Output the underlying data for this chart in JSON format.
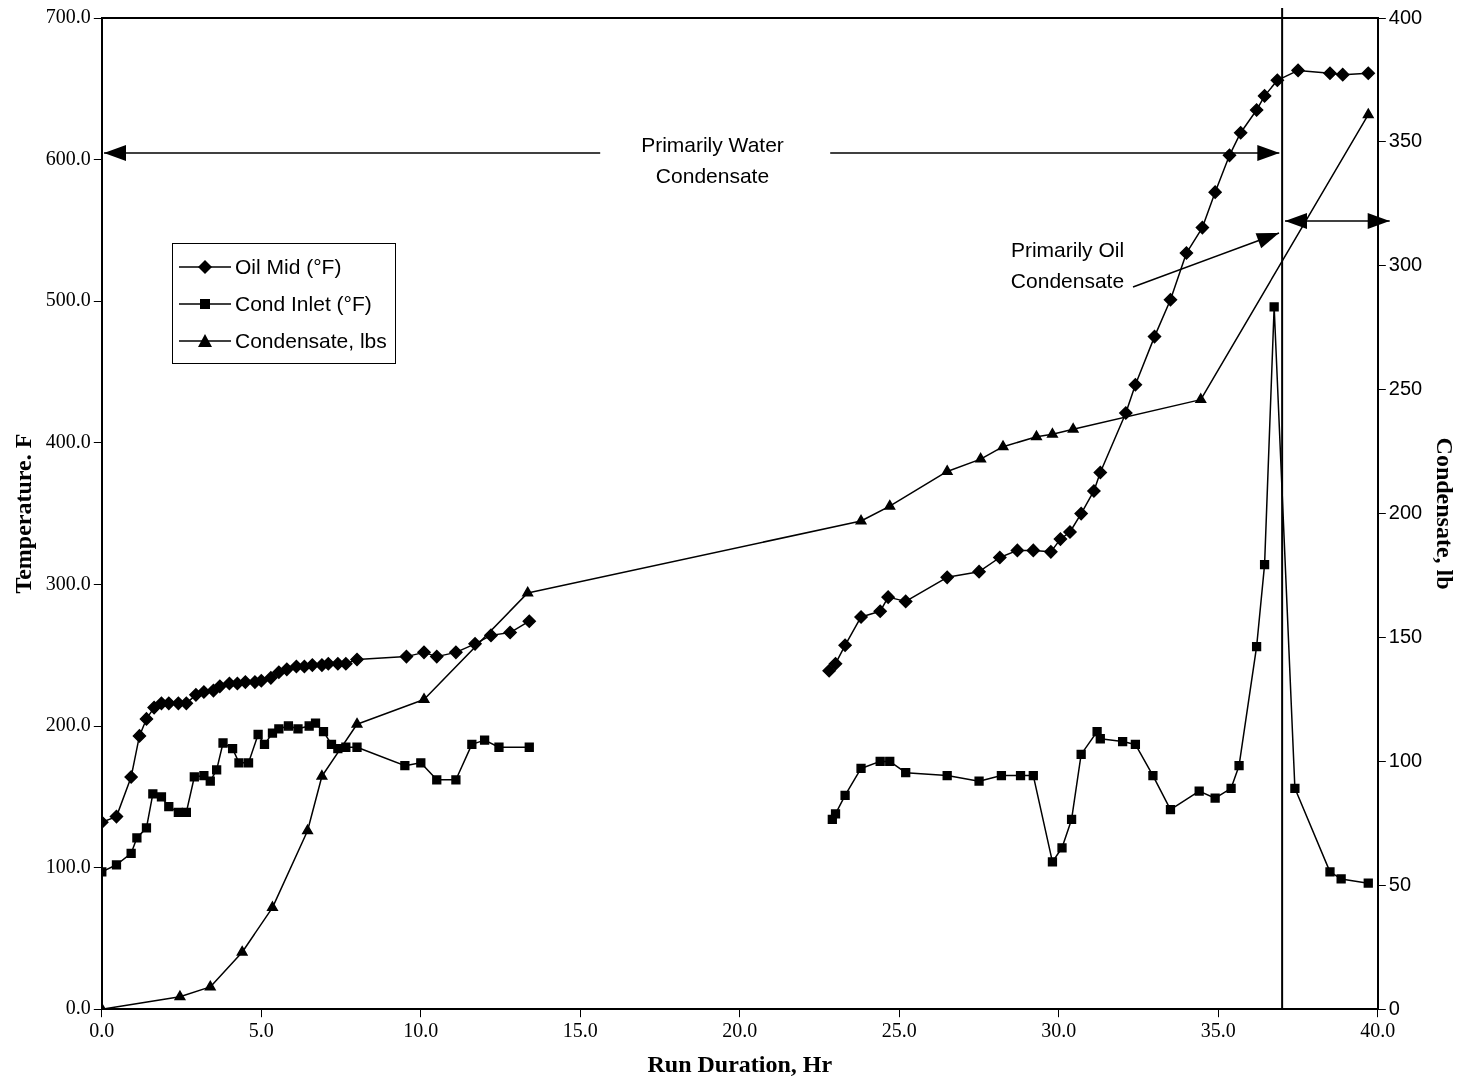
{
  "chart_data": {
    "type": "line",
    "xlabel": "Run Duration, Hr",
    "ylabel": "Temperature. F",
    "y2label": "Condensate, lb",
    "xlim": [
      0,
      40
    ],
    "xticks": [
      {
        "value": 0,
        "label": "0.0"
      },
      {
        "value": 5,
        "label": "5.0"
      },
      {
        "value": 10,
        "label": "10.0"
      },
      {
        "value": 15,
        "label": "15.0"
      },
      {
        "value": 20,
        "label": "20.0"
      },
      {
        "value": 25,
        "label": "25.0"
      },
      {
        "value": 30,
        "label": "30.0"
      },
      {
        "value": 35,
        "label": "35.0"
      },
      {
        "value": 40,
        "label": "40.0"
      }
    ],
    "ylim": [
      0,
      700
    ],
    "yticks": [
      {
        "value": 0,
        "label": "0.0"
      },
      {
        "value": 100,
        "label": "100.0"
      },
      {
        "value": 200,
        "label": "200.0"
      },
      {
        "value": 300,
        "label": "300.0"
      },
      {
        "value": 400,
        "label": "400.0"
      },
      {
        "value": 500,
        "label": "500.0"
      },
      {
        "value": 600,
        "label": "600.0"
      },
      {
        "value": 700,
        "label": "700.0"
      }
    ],
    "y2lim": [
      0,
      400
    ],
    "y2ticks": [
      0,
      50,
      100,
      150,
      200,
      250,
      300,
      350,
      400
    ],
    "grid": false,
    "legend": "top left",
    "line_style": "solid",
    "ref_lines": [
      {
        "axis": "x",
        "value": 37.0,
        "color": "#000000"
      }
    ],
    "annotations": [
      "Primarily Water Condensate",
      {
        "text": "Primarily Oil Condensate",
        "x": 36.9,
        "y": 548
      }
    ],
    "series": [
      {
        "name": "Oil Mid (°F)",
        "color": "#000000",
        "marker": "diamond",
        "x": [
          0,
          0.46,
          0.92,
          1.18,
          1.4,
          1.64,
          1.87,
          2.1,
          2.4,
          2.65,
          2.95,
          3.2,
          3.5,
          3.7,
          4.0,
          4.25,
          4.5,
          4.8,
          5.0,
          5.3,
          5.55,
          5.8,
          6.1,
          6.35,
          6.6,
          6.9,
          7.1,
          7.4,
          7.65,
          8.0,
          9.55,
          10.1,
          10.5,
          11.1,
          11.7,
          12.2,
          12.8,
          13.4,
          18.0,
          22.8,
          23.0,
          23.3,
          23.8,
          24.4,
          24.65,
          25.2,
          26.5,
          27.5,
          28.15,
          28.7,
          29.2,
          29.75,
          30.05,
          30.35,
          30.7,
          31.1,
          31.3,
          32.1,
          32.4,
          33.0,
          33.5,
          34.0,
          34.5,
          34.9,
          35.35,
          35.7,
          36.2,
          36.45,
          36.85,
          37.5,
          38.5,
          38.9,
          39.7
        ],
        "values": [
          132,
          136,
          164,
          193,
          205,
          213,
          216,
          216,
          216,
          216,
          222,
          224,
          225,
          228,
          230,
          230,
          231,
          231,
          232,
          234,
          238,
          240,
          242,
          242,
          243,
          243,
          244,
          244,
          244,
          247,
          249,
          252,
          249,
          252,
          258,
          264,
          266,
          274,
          null,
          239,
          244,
          257,
          277,
          281,
          291,
          288,
          305,
          309,
          319,
          324,
          324,
          323,
          332,
          337,
          350,
          366,
          379,
          421,
          441,
          475,
          501,
          534,
          552,
          577,
          603,
          619,
          635,
          645,
          656,
          663,
          661,
          660,
          661
        ]
      },
      {
        "name": "Cond Inlet (°F)",
        "color": "#000000",
        "marker": "square",
        "x": [
          0,
          0.46,
          0.92,
          1.1,
          1.4,
          1.6,
          1.87,
          2.1,
          2.4,
          2.65,
          2.9,
          3.2,
          3.4,
          3.6,
          3.8,
          4.1,
          4.3,
          4.6,
          4.9,
          5.1,
          5.35,
          5.55,
          5.85,
          6.15,
          6.5,
          6.7,
          6.95,
          7.2,
          7.4,
          7.65,
          8.0,
          9.5,
          10.0,
          10.5,
          11.1,
          11.6,
          12.0,
          12.45,
          13.4,
          18.0,
          22.9,
          23.0,
          23.3,
          23.8,
          24.4,
          24.7,
          25.2,
          26.5,
          27.5,
          28.2,
          28.8,
          29.2,
          29.8,
          30.1,
          30.4,
          30.7,
          31.2,
          31.3,
          32.0,
          32.4,
          32.95,
          33.5,
          34.4,
          34.9,
          35.4,
          35.65,
          36.2,
          36.45,
          36.75,
          37.4,
          38.5,
          38.85,
          39.7
        ],
        "values": [
          97,
          102,
          110,
          121,
          128,
          152,
          150,
          143,
          139,
          139,
          164,
          165,
          161,
          169,
          188,
          184,
          174,
          174,
          194,
          187,
          195,
          198,
          200,
          198,
          200,
          202,
          196,
          187,
          184,
          185,
          185,
          172,
          174,
          162,
          162,
          187,
          190,
          185,
          185,
          null,
          134,
          138,
          151,
          170,
          175,
          175,
          167,
          165,
          161,
          165,
          165,
          165,
          104,
          114,
          134,
          180,
          196,
          191,
          189,
          187,
          165,
          141,
          154,
          149,
          156,
          172,
          256,
          314,
          496,
          156,
          97,
          92,
          89
        ]
      },
      {
        "name": "Condensate, lbs",
        "color": "#000000",
        "marker": "triangle",
        "axis": "y2",
        "x": [
          0,
          2.45,
          3.4,
          4.4,
          5.35,
          6.45,
          6.9,
          8.0,
          10.1,
          13.35,
          23.8,
          24.7,
          26.5,
          27.55,
          28.25,
          29.3,
          29.8,
          30.45,
          34.45,
          39.7
        ],
        "values": [
          0,
          5,
          9,
          23,
          41,
          72,
          94,
          115,
          125,
          168,
          197,
          203,
          217,
          222,
          227,
          231,
          232,
          234,
          246,
          361
        ]
      }
    ]
  }
}
